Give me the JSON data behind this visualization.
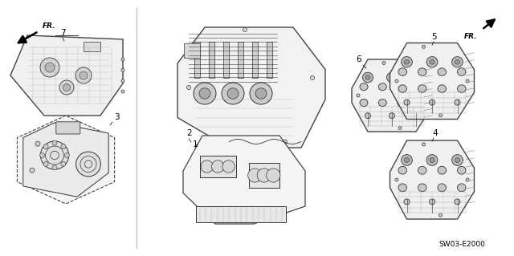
{
  "bg_color": "#ffffff",
  "fig_width": 6.4,
  "fig_height": 3.19,
  "dpi": 100,
  "part_number": "SW03-E2000",
  "outline_color": "#444444",
  "light_gray": "#cccccc",
  "mid_gray": "#888888",
  "dark_gray": "#333333",
  "label_fontsize": 7.5,
  "part_number_fontsize": 6.5
}
